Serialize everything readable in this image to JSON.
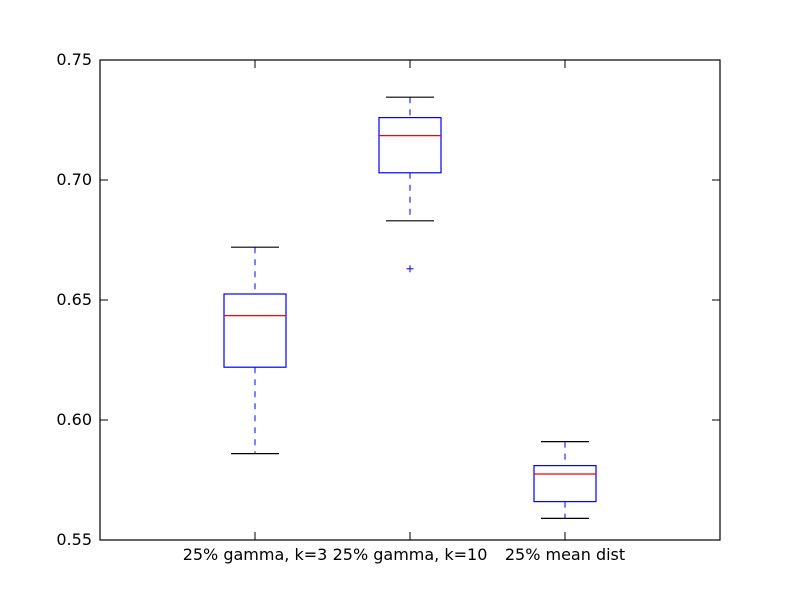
{
  "chart_data": {
    "type": "box",
    "title": "",
    "xlabel": "",
    "ylabel": "",
    "ylim": [
      0.55,
      0.75
    ],
    "yticks": [
      "0.55",
      "0.60",
      "0.65",
      "0.70",
      "0.75"
    ],
    "categories": [
      "25% gamma, k=3",
      "25% gamma, k=10",
      "25% mean dist"
    ],
    "boxes": [
      {
        "whisker_low": 0.586,
        "q1": 0.622,
        "median": 0.6435,
        "q3": 0.6525,
        "whisker_high": 0.672,
        "outliers": []
      },
      {
        "whisker_low": 0.683,
        "q1": 0.703,
        "median": 0.7185,
        "q3": 0.726,
        "whisker_high": 0.7345,
        "outliers": [
          0.663
        ]
      },
      {
        "whisker_low": 0.559,
        "q1": 0.566,
        "median": 0.5775,
        "q3": 0.581,
        "whisker_high": 0.591,
        "outliers": []
      }
    ],
    "colors": {
      "box": "#0000ff",
      "median": "#ff0000",
      "cap": "#000000",
      "axis": "#000000"
    },
    "grid": false,
    "legend": "none"
  }
}
